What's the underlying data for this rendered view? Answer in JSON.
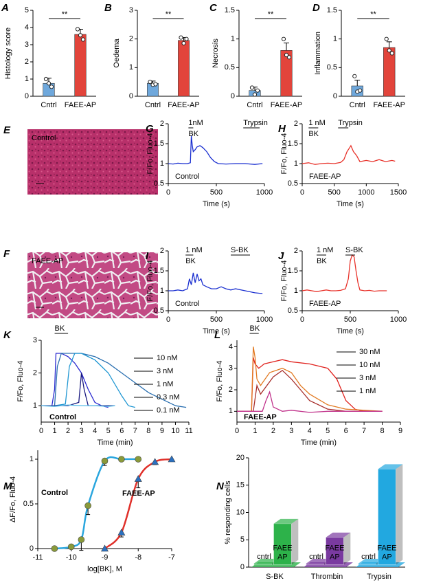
{
  "chart_data": [
    {
      "panel": "A",
      "type": "bar",
      "categories": [
        "Cntrl",
        "FAEE-AP"
      ],
      "values": [
        0.75,
        3.6
      ],
      "errors": [
        0.3,
        0.3
      ],
      "points": [
        [
          1.0,
          0.75,
          0.55
        ],
        [
          3.9,
          3.55,
          3.3
        ]
      ],
      "colors": [
        "#6fa8dc",
        "#e2443b"
      ],
      "ylabel": "Histology score",
      "ylim": [
        0,
        5
      ],
      "yticks": [
        0,
        1,
        2,
        3,
        4,
        5
      ],
      "annotation": "**"
    },
    {
      "panel": "B",
      "type": "bar",
      "categories": [
        "Cntrl",
        "FAEE-AP"
      ],
      "values": [
        0.45,
        1.95
      ],
      "errors": [
        0.08,
        0.1
      ],
      "points": [
        [
          0.5,
          0.4,
          0.42
        ],
        [
          2.05,
          1.85,
          2.0
        ]
      ],
      "colors": [
        "#6fa8dc",
        "#e2443b"
      ],
      "ylabel": "Oedema",
      "ylim": [
        0,
        3
      ],
      "yticks": [
        0,
        1,
        2,
        3
      ],
      "annotation": "**"
    },
    {
      "panel": "C",
      "type": "bar",
      "categories": [
        "Cntrl",
        "FAEE-AP"
      ],
      "values": [
        0.1,
        0.8
      ],
      "errors": [
        0.06,
        0.13
      ],
      "points": [
        [
          0.15,
          0.03,
          0.1
        ],
        [
          1.0,
          0.72,
          0.68
        ]
      ],
      "colors": [
        "#6fa8dc",
        "#e2443b"
      ],
      "ylabel": "Necrosis",
      "ylim": [
        0,
        1.5
      ],
      "yticks": [
        0,
        0.5,
        1,
        1.5
      ],
      "annotation": "**"
    },
    {
      "panel": "D",
      "type": "bar",
      "categories": [
        "Cntrl",
        "FAEE-AP"
      ],
      "values": [
        0.18,
        0.85
      ],
      "errors": [
        0.1,
        0.1
      ],
      "points": [
        [
          0.35,
          0.08,
          0.1
        ],
        [
          1.0,
          0.8,
          0.75
        ]
      ],
      "colors": [
        "#6fa8dc",
        "#e2443b"
      ],
      "ylabel": "Inflammation",
      "ylim": [
        0,
        1.5
      ],
      "yticks": [
        0,
        0.5,
        1,
        1.5
      ],
      "annotation": "**"
    },
    {
      "panel": "E",
      "type": "image",
      "label": "Control"
    },
    {
      "panel": "F",
      "type": "image",
      "label": "FAEE-AP"
    },
    {
      "panel": "G",
      "type": "line",
      "color": "#1a2fd0",
      "ylabel": "F/Fo, Fluo-4",
      "xlabel": "Time (s)",
      "xlim": [
        0,
        1000
      ],
      "xticks": [
        0,
        500,
        1000
      ],
      "ylim": [
        0.5,
        2
      ],
      "yticks": [
        0.5,
        1,
        1.5,
        2
      ],
      "x": [
        0,
        50,
        100,
        150,
        200,
        230,
        240,
        250,
        260,
        280,
        300,
        330,
        360,
        400,
        440,
        480,
        520,
        600,
        700,
        800,
        900,
        980
      ],
      "values": [
        1,
        0.99,
        1.01,
        1,
        1,
        1.02,
        1.7,
        1.45,
        1.3,
        1.35,
        1.42,
        1.45,
        1.4,
        1.3,
        1.15,
        1.05,
        1,
        0.99,
        1,
        1,
        0.98,
        1
      ],
      "stimuli": [
        {
          "label": [
            "1nM",
            "BK"
          ],
          "start": 210,
          "end": 260
        },
        {
          "label": [
            "Trypsin"
          ],
          "start": 780,
          "end": 950
        }
      ],
      "annotation": "Control"
    },
    {
      "panel": "H",
      "type": "line",
      "color": "#e8322a",
      "ylabel": "F/Fo, Fluo-4",
      "xlabel": "Time (s)",
      "xlim": [
        0,
        1500
      ],
      "xticks": [
        0,
        500,
        1000,
        1500
      ],
      "ylim": [
        0.5,
        2
      ],
      "yticks": [
        0.5,
        1,
        1.5,
        2
      ],
      "x": [
        0,
        100,
        200,
        300,
        400,
        500,
        600,
        650,
        700,
        740,
        760,
        800,
        850,
        900,
        1000,
        1100,
        1200,
        1300,
        1400,
        1450
      ],
      "values": [
        1,
        1.02,
        0.98,
        1,
        1.01,
        1,
        1.03,
        1.1,
        1.3,
        1.4,
        1.45,
        1.3,
        1.2,
        1.05,
        1.08,
        1.05,
        1.1,
        1.05,
        1.08,
        1.06
      ],
      "stimuli": [
        {
          "label": [
            "1 nM",
            "BK"
          ],
          "start": 100,
          "end": 250
        },
        {
          "label": [
            "Trypsin"
          ],
          "start": 560,
          "end": 720
        }
      ],
      "annotation": "FAEE-AP"
    },
    {
      "panel": "I",
      "type": "line",
      "color": "#1a2fd0",
      "ylabel": "F/Fo, Fluo-4",
      "xlabel": "Time (s)",
      "xlim": [
        0,
        1000
      ],
      "xticks": [
        0,
        500,
        1000
      ],
      "ylim": [
        0.5,
        2
      ],
      "yticks": [
        0.5,
        1,
        1.5,
        2
      ],
      "x": [
        0,
        50,
        100,
        150,
        200,
        220,
        240,
        260,
        280,
        300,
        320,
        340,
        360,
        400,
        450,
        500,
        550,
        600,
        650,
        700,
        800,
        900,
        980
      ],
      "values": [
        1,
        1,
        1.02,
        1,
        1.05,
        1.3,
        1.15,
        1.45,
        1.2,
        1.42,
        1.25,
        1.3,
        1.15,
        1.1,
        1.05,
        1.05,
        1.1,
        1.05,
        1.02,
        1.05,
        1.0,
        0.95,
        0.93
      ],
      "stimuli": [
        {
          "label": [
            "1 nM",
            "BK"
          ],
          "start": 180,
          "end": 260
        },
        {
          "label": [
            "S-BK"
          ],
          "start": 650,
          "end": 850
        }
      ],
      "annotation": "Control"
    },
    {
      "panel": "J",
      "type": "line",
      "color": "#e8322a",
      "ylabel": "F/Fo, Fluo-4",
      "xlabel": "Time (s)",
      "xlim": [
        0,
        1000
      ],
      "xticks": [
        0,
        500,
        1000
      ],
      "ylim": [
        0.5,
        2
      ],
      "yticks": [
        0.5,
        1,
        1.5,
        2
      ],
      "x": [
        0,
        50,
        100,
        150,
        200,
        250,
        300,
        350,
        400,
        450,
        480,
        500,
        520,
        540,
        560,
        580,
        600,
        650,
        700,
        750,
        800,
        880
      ],
      "values": [
        1,
        1.02,
        1,
        0.98,
        1,
        1.02,
        1,
        1,
        1.01,
        1.05,
        1.3,
        1.75,
        1.9,
        1.85,
        1.5,
        1.2,
        1.02,
        1,
        1.01,
        0.99,
        1,
        1
      ],
      "stimuli": [
        {
          "label": [
            "1 nM",
            "BK"
          ],
          "start": 150,
          "end": 250
        },
        {
          "label": [
            "S-BK"
          ],
          "start": 450,
          "end": 550
        }
      ],
      "annotation": "FAEE-AP"
    },
    {
      "panel": "K",
      "type": "line",
      "ylabel": "F/Fo, Fluo-4",
      "xlabel": "Time (min)",
      "xlim": [
        0,
        11
      ],
      "xticks": [
        0,
        1,
        2,
        3,
        4,
        5,
        6,
        7,
        8,
        9,
        10,
        11
      ],
      "ylim": [
        0.5,
        3
      ],
      "yticks": [
        1,
        2,
        3
      ],
      "stimuli": [
        {
          "label": [
            "BK"
          ],
          "start": 1,
          "end": 2
        }
      ],
      "annotation": "Control",
      "annotation_color": "#2a8ac8",
      "series": [
        {
          "name": "10 nM",
          "color": "#2a2ad0",
          "x": [
            0,
            0.8,
            1,
            1.1,
            1.5,
            2,
            2.5,
            3,
            3.5,
            4,
            4.5,
            5
          ],
          "values": [
            1,
            1,
            1.5,
            2.6,
            2.6,
            2.5,
            2.3,
            2,
            1.5,
            1.1,
            1,
            0.95
          ]
        },
        {
          "name": "3 nM",
          "color": "#2a6fb0",
          "x": [
            0,
            1,
            1.2,
            1.5,
            2,
            3,
            4,
            5,
            6,
            7,
            8,
            9,
            10,
            10.8
          ],
          "values": [
            1,
            1,
            2.2,
            2.6,
            2.6,
            2.6,
            2.5,
            2.3,
            2.0,
            1.7,
            1.4,
            1.2,
            1.0,
            0.95
          ]
        },
        {
          "name": "1 nM",
          "color": "#1e96d2",
          "x": [
            0,
            1,
            1.8,
            2.1,
            2.5,
            3,
            4,
            5,
            6,
            6.5,
            7
          ],
          "values": [
            1,
            1,
            1.05,
            2.2,
            2.6,
            2.6,
            2.4,
            2,
            1.3,
            1,
            0.95
          ]
        },
        {
          "name": "0.3 nM",
          "color": "#1a1a80",
          "x": [
            0,
            1,
            2,
            2.8,
            3,
            3.2,
            3.5,
            4,
            5,
            5.5
          ],
          "values": [
            1,
            1,
            1,
            1.1,
            2.0,
            1.5,
            1,
            1,
            1,
            1
          ]
        },
        {
          "name": "0.1 nM",
          "color": "#5fc0ea",
          "x": [
            0,
            1,
            2,
            3,
            4,
            5,
            5.5
          ],
          "values": [
            1,
            0.98,
            1.02,
            1,
            1,
            0.98,
            1
          ]
        }
      ]
    },
    {
      "panel": "L",
      "type": "line",
      "ylabel": "F/Fo, Fluo-4",
      "xlabel": "Time (min)",
      "xlim": [
        0,
        9
      ],
      "xticks": [
        0,
        1,
        2,
        3,
        4,
        5,
        6,
        7,
        8,
        9
      ],
      "ylim": [
        0.5,
        4.3
      ],
      "yticks": [
        1,
        2,
        3,
        4
      ],
      "stimuli": [
        {
          "label": [
            "BK"
          ],
          "start": 0.7,
          "end": 1.2
        }
      ],
      "annotation": "FAEE-AP",
      "annotation_color": "#d02a2a",
      "series": [
        {
          "name": "30 nM",
          "color": "#e0201c",
          "x": [
            0,
            0.8,
            0.9,
            1,
            1.2,
            1.5,
            2,
            2.5,
            3,
            4,
            5,
            5.5,
            6,
            6.5,
            7,
            8
          ],
          "values": [
            1,
            1,
            3.5,
            3.2,
            3.0,
            3.2,
            3.3,
            3.4,
            3.3,
            3.2,
            3.0,
            2.5,
            1.5,
            1.1,
            1,
            1
          ]
        },
        {
          "name": "10 nM",
          "color": "#e27a22",
          "x": [
            0,
            0.8,
            0.9,
            1,
            1.1,
            1.3,
            1.8,
            2.5,
            3,
            3.5,
            4,
            5,
            6,
            7,
            8
          ],
          "values": [
            1,
            1,
            4.0,
            3.5,
            2.5,
            2.2,
            2.8,
            3.0,
            2.8,
            2.2,
            1.8,
            1.3,
            1.1,
            1.05,
            1
          ]
        },
        {
          "name": "3 nM",
          "color": "#a8302c",
          "x": [
            0,
            0.9,
            1.1,
            1.3,
            2,
            2.5,
            3,
            3.5,
            4,
            5,
            6,
            8
          ],
          "values": [
            1,
            1,
            2.2,
            1.8,
            2.6,
            2.9,
            2.5,
            2.0,
            1.5,
            1.1,
            1,
            1
          ]
        },
        {
          "name": "1 nM",
          "color": "#c0308a",
          "x": [
            0,
            1.4,
            1.6,
            1.8,
            2,
            2.5,
            3,
            4,
            5,
            6,
            7,
            8
          ],
          "values": [
            1,
            1,
            1.5,
            1.9,
            1.2,
            1.0,
            1.05,
            0.95,
            1,
            1,
            1,
            1
          ]
        }
      ]
    },
    {
      "panel": "M",
      "type": "scatter",
      "ylabel": "ΔF/Fo, Fluo-4",
      "xlabel": "log[BK], M",
      "xlim": [
        -11,
        -7
      ],
      "xticks": [
        -11,
        -10,
        -9,
        -8,
        -7
      ],
      "ylim": [
        0,
        1.1
      ],
      "yticks": [
        0,
        0.5,
        1
      ],
      "series": [
        {
          "name": "Control",
          "color": "#2aa6de",
          "marker": "circle",
          "marker_color": "#8a9a3a",
          "x": [
            -10.5,
            -10,
            -9.7,
            -9.5,
            -9,
            -8.5,
            -8
          ],
          "values": [
            0,
            0.02,
            0.1,
            0.48,
            0.98,
            1,
            1
          ],
          "errors": [
            0,
            0.02,
            0.12,
            0.1,
            0.05,
            0,
            0
          ]
        },
        {
          "name": "FAEE-AP",
          "color": "#e0302a",
          "marker": "triangle",
          "marker_color": "#2a70c0",
          "x": [
            -9,
            -8.5,
            -8,
            -7.5,
            -7
          ],
          "values": [
            0,
            0.18,
            0.78,
            0.97,
            1
          ],
          "errors": [
            0,
            0.05,
            0.1,
            0.03,
            0
          ]
        }
      ]
    },
    {
      "panel": "N",
      "type": "bar3d",
      "ylabel": "% responding cells",
      "ylim": [
        0,
        20
      ],
      "yticks": [
        0,
        5,
        10,
        15,
        20
      ],
      "categories": [
        "S-BK",
        "Thrombin",
        "Trypsin"
      ],
      "colors": [
        "#2db24a",
        "#7a3aa0",
        "#22a8e0"
      ],
      "series": [
        {
          "label": [
            "cntrl"
          ],
          "values": [
            0.2,
            0.2,
            0.2
          ]
        },
        {
          "label": [
            "FAEE",
            "AP"
          ],
          "values": [
            7.5,
            5,
            17.5
          ]
        }
      ]
    }
  ]
}
